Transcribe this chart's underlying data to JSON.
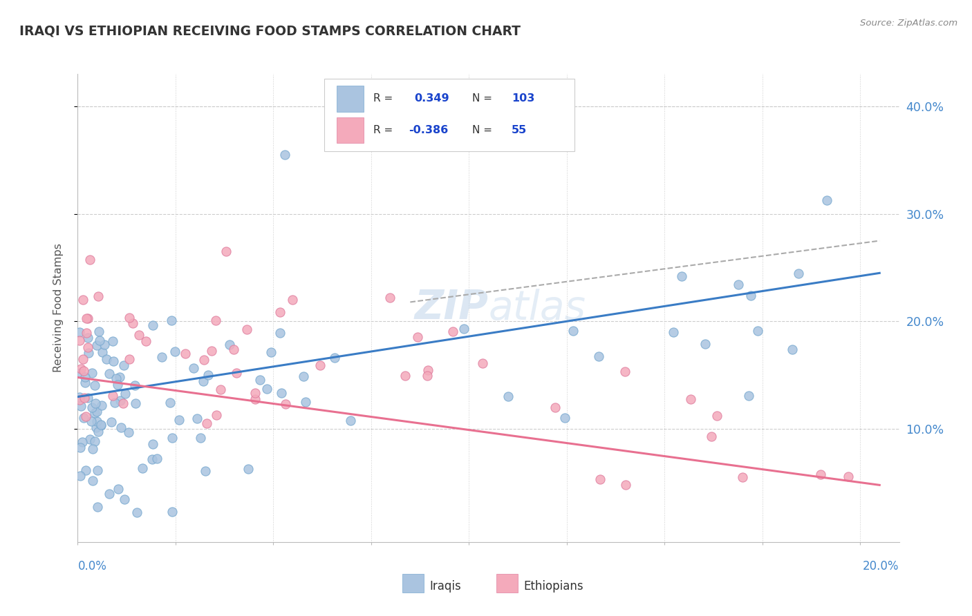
{
  "title": "IRAQI VS ETHIOPIAN RECEIVING FOOD STAMPS CORRELATION CHART",
  "source": "Source: ZipAtlas.com",
  "ylabel": "Receiving Food Stamps",
  "xlim": [
    0.0,
    0.21
  ],
  "ylim": [
    -0.005,
    0.43
  ],
  "yticks_right": [
    0.1,
    0.2,
    0.3,
    0.4
  ],
  "ytick_labels_right": [
    "10.0%",
    "20.0%",
    "30.0%",
    "40.0%"
  ],
  "xticks": [
    0.0,
    0.025,
    0.05,
    0.075,
    0.1,
    0.125,
    0.15,
    0.175,
    0.2
  ],
  "iraqi_R": 0.349,
  "iraqi_N": 103,
  "ethiopian_R": -0.386,
  "ethiopian_N": 55,
  "iraqi_color": "#aac4e0",
  "ethiopian_color": "#f4aabb",
  "iraqi_edge_color": "#7aaad0",
  "ethiopian_edge_color": "#e080a0",
  "iraqi_line_color": "#3a7cc5",
  "ethiopian_line_color": "#e87090",
  "trendline_dashed_color": "#aaaaaa",
  "legend_R_color": "#1a44cc",
  "watermark_color": "#c5d8ec",
  "background_color": "#ffffff",
  "plot_bg_color": "#ffffff",
  "grid_color": "#cccccc",
  "title_color": "#333333",
  "axis_label_color": "#4488cc"
}
